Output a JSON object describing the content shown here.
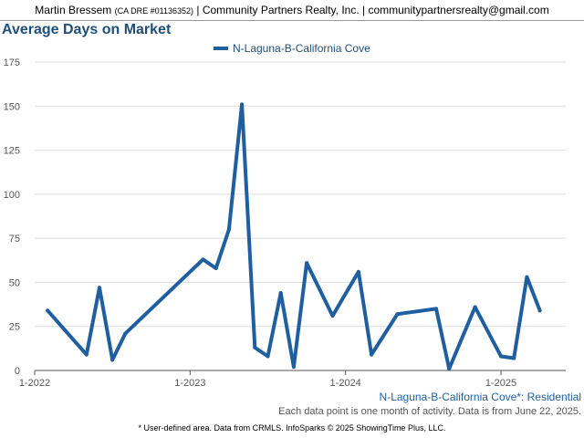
{
  "header": {
    "agent": "Martin Bressem",
    "dre": "(CA DRE #01136352)",
    "company": "| Community Partners Realty, Inc. | communitypartnersrealty@gmail.com"
  },
  "colors": {
    "series": "#1f5f9f",
    "title": "#1f4e79",
    "grid": "#dddddd",
    "axis": "#555555"
  },
  "chart_data": {
    "type": "line",
    "title": "Average Days on Market",
    "legend": [
      "N-Laguna-B-California Cove"
    ],
    "legend_position": "top-center",
    "grid": true,
    "ylim": [
      0,
      175
    ],
    "yticks": [
      "0",
      "25",
      "50",
      "75",
      "100",
      "125",
      "150",
      "175"
    ],
    "xticks": [
      "1-2022",
      "1-2023",
      "1-2024",
      "1-2025"
    ],
    "xlim": [
      "2022-01",
      "2025-06"
    ],
    "series": [
      {
        "name": "N-Laguna-B-California Cove",
        "points": [
          {
            "x": "2022-02",
            "y": 34
          },
          {
            "x": "2022-05",
            "y": 9
          },
          {
            "x": "2022-06",
            "y": 47
          },
          {
            "x": "2022-07",
            "y": 6
          },
          {
            "x": "2022-08",
            "y": 21
          },
          {
            "x": "2023-02",
            "y": 63
          },
          {
            "x": "2023-03",
            "y": 58
          },
          {
            "x": "2023-04",
            "y": 80
          },
          {
            "x": "2023-05",
            "y": 151
          },
          {
            "x": "2023-06",
            "y": 13
          },
          {
            "x": "2023-07",
            "y": 8
          },
          {
            "x": "2023-08",
            "y": 44
          },
          {
            "x": "2023-09",
            "y": 2
          },
          {
            "x": "2023-10",
            "y": 61
          },
          {
            "x": "2023-12",
            "y": 31
          },
          {
            "x": "2024-02",
            "y": 56
          },
          {
            "x": "2024-03",
            "y": 9
          },
          {
            "x": "2024-05",
            "y": 32
          },
          {
            "x": "2024-08",
            "y": 35
          },
          {
            "x": "2024-09",
            "y": 1
          },
          {
            "x": "2024-11",
            "y": 36
          },
          {
            "x": "2025-01",
            "y": 8
          },
          {
            "x": "2025-02",
            "y": 7
          },
          {
            "x": "2025-03",
            "y": 53
          },
          {
            "x": "2025-04",
            "y": 34
          }
        ]
      }
    ]
  },
  "footer": {
    "series_label": "N-Laguna-B-California Cove*: Residential",
    "note": "Each data point is one month of activity. Data is from June 22, 2025.",
    "credit": "* User-defined area. Data from CRMLS. InfoSparks © 2025 ShowingTime Plus, LLC."
  }
}
